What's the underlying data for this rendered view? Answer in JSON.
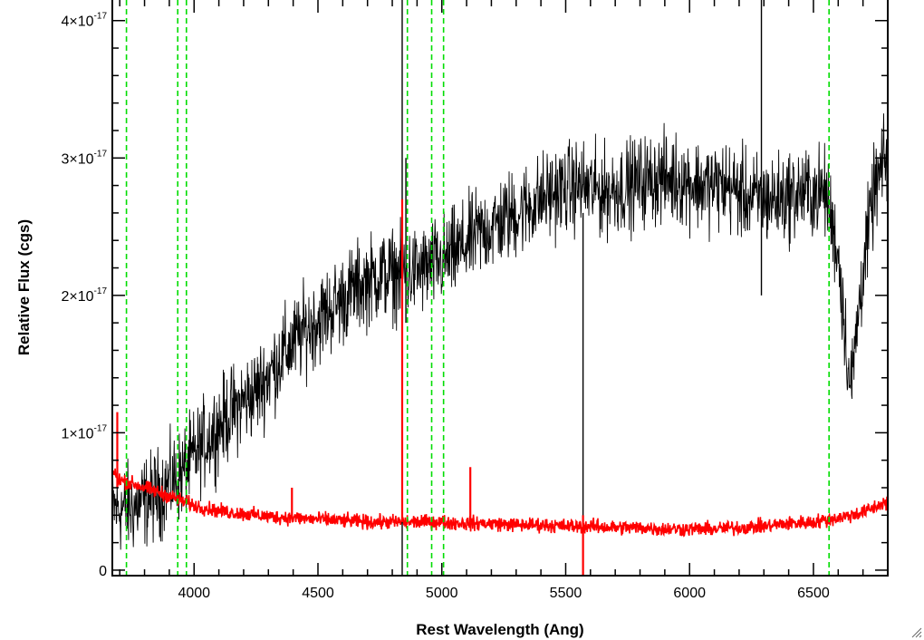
{
  "chart_data": {
    "type": "line",
    "xlabel": "Rest Wavelength (Ang)",
    "ylabel": "Relative Flux (cgs)",
    "xlim": [
      3670,
      6800
    ],
    "ylim": [
      -4e-19,
      4.15e-17
    ],
    "x_ticks": [
      {
        "value": 4000,
        "label": "4000"
      },
      {
        "value": 4500,
        "label": "4500"
      },
      {
        "value": 5000,
        "label": "5000"
      },
      {
        "value": 5500,
        "label": "5500"
      },
      {
        "value": 6000,
        "label": "6000"
      },
      {
        "value": 6500,
        "label": "6500"
      }
    ],
    "y_ticks": [
      {
        "value": 0,
        "mantissa": "0",
        "exponent": ""
      },
      {
        "value": 1e-17,
        "mantissa": "1×10",
        "exponent": "-17"
      },
      {
        "value": 2e-17,
        "mantissa": "2×10",
        "exponent": "-17"
      },
      {
        "value": 3e-17,
        "mantissa": "3×10",
        "exponent": "-17"
      },
      {
        "value": 4e-17,
        "mantissa": "4×10",
        "exponent": "-17"
      }
    ],
    "grid": false,
    "series": [
      {
        "role": "spectrum",
        "color": "#000000",
        "x": [
          3670,
          3750,
          3850,
          3950,
          4050,
          4150,
          4250,
          4350,
          4450,
          4550,
          4650,
          4750,
          4850,
          4950,
          5050,
          5150,
          5250,
          5350,
          5450,
          5550,
          5650,
          5750,
          5850,
          5950,
          6050,
          6150,
          6250,
          6350,
          6450,
          6550,
          6600,
          6650,
          6700,
          6750,
          6800
        ],
        "y": [
          4.5e-18,
          4.5e-18,
          5.5e-18,
          7e-18,
          9.5e-18,
          1.15e-17,
          1.3e-17,
          1.55e-17,
          1.75e-17,
          1.9e-17,
          2.05e-17,
          2.15e-17,
          2.15e-17,
          2.2e-17,
          2.3e-17,
          2.45e-17,
          2.55e-17,
          2.65e-17,
          2.75e-17,
          2.8e-17,
          2.75e-17,
          2.8e-17,
          2.85e-17,
          2.85e-17,
          2.8e-17,
          2.8e-17,
          2.7e-17,
          2.7e-17,
          2.75e-17,
          2.75e-17,
          2.3e-17,
          1.3e-17,
          2.2e-17,
          2.8e-17,
          3e-17
        ],
        "noise": 2.5e-18
      },
      {
        "role": "error",
        "color": "#ff0000",
        "x": [
          3670,
          3700,
          3800,
          3900,
          4000,
          4100,
          4200,
          4300,
          4400,
          4500,
          4600,
          4700,
          4800,
          4900,
          5000,
          5100,
          5200,
          5300,
          5400,
          5500,
          5600,
          5700,
          5800,
          5900,
          6000,
          6100,
          6200,
          6300,
          6400,
          6500,
          6600,
          6700,
          6800
        ],
        "y": [
          7.2e-18,
          6.6e-18,
          6e-18,
          5.4e-18,
          4.7e-18,
          4.3e-18,
          4.1e-18,
          3.9e-18,
          3.8e-18,
          3.7e-18,
          3.6e-18,
          3.5e-18,
          3.5e-18,
          3.5e-18,
          3.5e-18,
          3.4e-18,
          3.4e-18,
          3.3e-18,
          3.3e-18,
          3.2e-18,
          3.2e-18,
          3.1e-18,
          3.1e-18,
          3e-18,
          3e-18,
          3e-18,
          3.1e-18,
          3.2e-18,
          3.4e-18,
          3.5e-18,
          3.8e-18,
          4.2e-18,
          5e-18
        ],
        "noise": 4e-19
      }
    ],
    "reference_lines": {
      "color": "#00dd00",
      "style": "dashed",
      "x": [
        3727,
        3934,
        3969,
        4861,
        4959,
        5007,
        6563
      ]
    },
    "spikes": [
      {
        "series": "spectrum",
        "x": 4840,
        "from": -4e-19,
        "to": 4.15e-17
      },
      {
        "series": "spectrum",
        "x": 4855,
        "from": 1.8e-17,
        "to": 3e-17
      },
      {
        "series": "spectrum",
        "x": 5570,
        "from": -4e-19,
        "to": 2.6e-17
      },
      {
        "series": "spectrum",
        "x": 6290,
        "from": 2e-17,
        "to": 4.15e-17
      },
      {
        "series": "error",
        "x": 4840,
        "from": 3.5e-18,
        "to": 2.7e-17
      },
      {
        "series": "error",
        "x": 5570,
        "from": -4e-19,
        "to": 4e-18
      },
      {
        "series": "error",
        "x": 3690,
        "from": 6e-18,
        "to": 1.15e-17
      },
      {
        "series": "error",
        "x": 4395,
        "from": 3.8e-18,
        "to": 6e-18
      },
      {
        "series": "error",
        "x": 5115,
        "from": 3.5e-18,
        "to": 7.5e-18
      }
    ]
  }
}
